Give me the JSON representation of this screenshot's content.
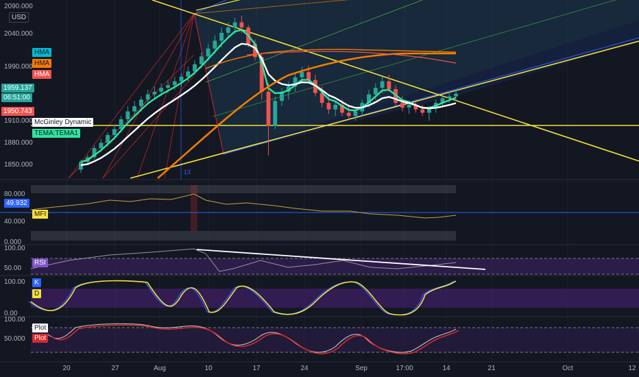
{
  "currency": "USD",
  "price_ticks": [
    "2040.000",
    "1990.000",
    "1910.000",
    "1880.000",
    "1850.000"
  ],
  "top_tick": "2090.000",
  "price_labels": {
    "hma1": "HMA",
    "hma2": "HMA",
    "hma3": "HMA",
    "last_price": "1959.137",
    "countdown": "06:51:00",
    "low_price": "1950.743",
    "mcginley": "McGinley Dynamic",
    "tema": "TEMA:TEMA1"
  },
  "mfi": {
    "label": "MFI",
    "value": "49.932",
    "ticks": [
      "80.000",
      "40.000",
      "0.000"
    ]
  },
  "rsi": {
    "label": "RSI",
    "ticks": [
      "100.00",
      "50.00"
    ]
  },
  "stoch": {
    "k_label": "K",
    "d_label": "D",
    "ticks": [
      "100.00",
      "0.00"
    ]
  },
  "plot": {
    "label1": "Plot",
    "label2": "Plot",
    "ticks": [
      "100.00",
      "50.000"
    ]
  },
  "x_ticks": [
    "20",
    "27",
    "Aug",
    "10",
    "17",
    "24",
    "Sep",
    "17:00",
    "14",
    "21",
    "Oct",
    "12"
  ],
  "marker_label": "13",
  "colors": {
    "bg": "#131722",
    "up": "#26a69a",
    "down": "#ef5350",
    "white": "#ffffff",
    "tema": "#2ee59d",
    "orange": "#f57c00",
    "yellow": "#f5e13a",
    "blue": "#2962ff",
    "purple": "#3d1f63",
    "mfi_line": "#c9a33d",
    "red_line": "#d42a2a"
  },
  "chart_data": {
    "type": "candlestick",
    "x_labels": [
      "20",
      "27",
      "Aug",
      "10",
      "17",
      "24",
      "Sep",
      "17:00",
      "14",
      "21",
      "Oct",
      "12"
    ],
    "ylim": [
      1830,
      2100
    ],
    "ohlc": [
      [
        1843,
        1858,
        1838,
        1855
      ],
      [
        1855,
        1866,
        1850,
        1862
      ],
      [
        1862,
        1880,
        1858,
        1876
      ],
      [
        1876,
        1890,
        1870,
        1884
      ],
      [
        1884,
        1900,
        1878,
        1896
      ],
      [
        1896,
        1912,
        1890,
        1905
      ],
      [
        1905,
        1925,
        1900,
        1920
      ],
      [
        1920,
        1940,
        1915,
        1932
      ],
      [
        1932,
        1948,
        1925,
        1940
      ],
      [
        1940,
        1955,
        1932,
        1950
      ],
      [
        1950,
        1965,
        1944,
        1958
      ],
      [
        1958,
        1970,
        1950,
        1962
      ],
      [
        1962,
        1975,
        1955,
        1968
      ],
      [
        1968,
        1980,
        1960,
        1972
      ],
      [
        1972,
        1985,
        1965,
        1978
      ],
      [
        1978,
        1990,
        1970,
        1985
      ],
      [
        1985,
        2000,
        1978,
        1993
      ],
      [
        1993,
        2010,
        1988,
        2004
      ],
      [
        2004,
        2022,
        1998,
        2016
      ],
      [
        2016,
        2035,
        2010,
        2028
      ],
      [
        2028,
        2048,
        2020,
        2040
      ],
      [
        2040,
        2060,
        2030,
        2052
      ],
      [
        2052,
        2068,
        2045,
        2060
      ],
      [
        2060,
        2075,
        2050,
        2068
      ],
      [
        2068,
        2078,
        2052,
        2060
      ],
      [
        2060,
        2064,
        2030,
        2035
      ],
      [
        2035,
        2042,
        2010,
        2015
      ],
      [
        2015,
        2020,
        1950,
        1962
      ],
      [
        1962,
        1975,
        1865,
        1910
      ],
      [
        1910,
        1955,
        1905,
        1948
      ],
      [
        1948,
        1968,
        1940,
        1962
      ],
      [
        1962,
        1978,
        1950,
        1970
      ],
      [
        1970,
        1990,
        1962,
        1984
      ],
      [
        1984,
        2000,
        1975,
        1992
      ],
      [
        1992,
        2002,
        1975,
        1980
      ],
      [
        1980,
        1988,
        1955,
        1960
      ],
      [
        1960,
        1970,
        1938,
        1945
      ],
      [
        1945,
        1955,
        1928,
        1935
      ],
      [
        1935,
        1948,
        1925,
        1942
      ],
      [
        1942,
        1950,
        1925,
        1930
      ],
      [
        1930,
        1940,
        1920,
        1925
      ],
      [
        1925,
        1938,
        1918,
        1932
      ],
      [
        1932,
        1950,
        1925,
        1945
      ],
      [
        1945,
        1965,
        1938,
        1958
      ],
      [
        1958,
        1975,
        1950,
        1968
      ],
      [
        1968,
        1985,
        1960,
        1978
      ],
      [
        1978,
        1988,
        1962,
        1966
      ],
      [
        1966,
        1972,
        1940,
        1945
      ],
      [
        1945,
        1955,
        1932,
        1938
      ],
      [
        1938,
        1948,
        1928,
        1942
      ],
      [
        1942,
        1950,
        1930,
        1935
      ],
      [
        1935,
        1942,
        1925,
        1930
      ],
      [
        1930,
        1940,
        1918,
        1938
      ],
      [
        1938,
        1950,
        1930,
        1945
      ],
      [
        1945,
        1958,
        1938,
        1952
      ],
      [
        1952,
        1962,
        1945,
        1955
      ],
      [
        1955,
        1965,
        1948,
        1959
      ]
    ]
  }
}
